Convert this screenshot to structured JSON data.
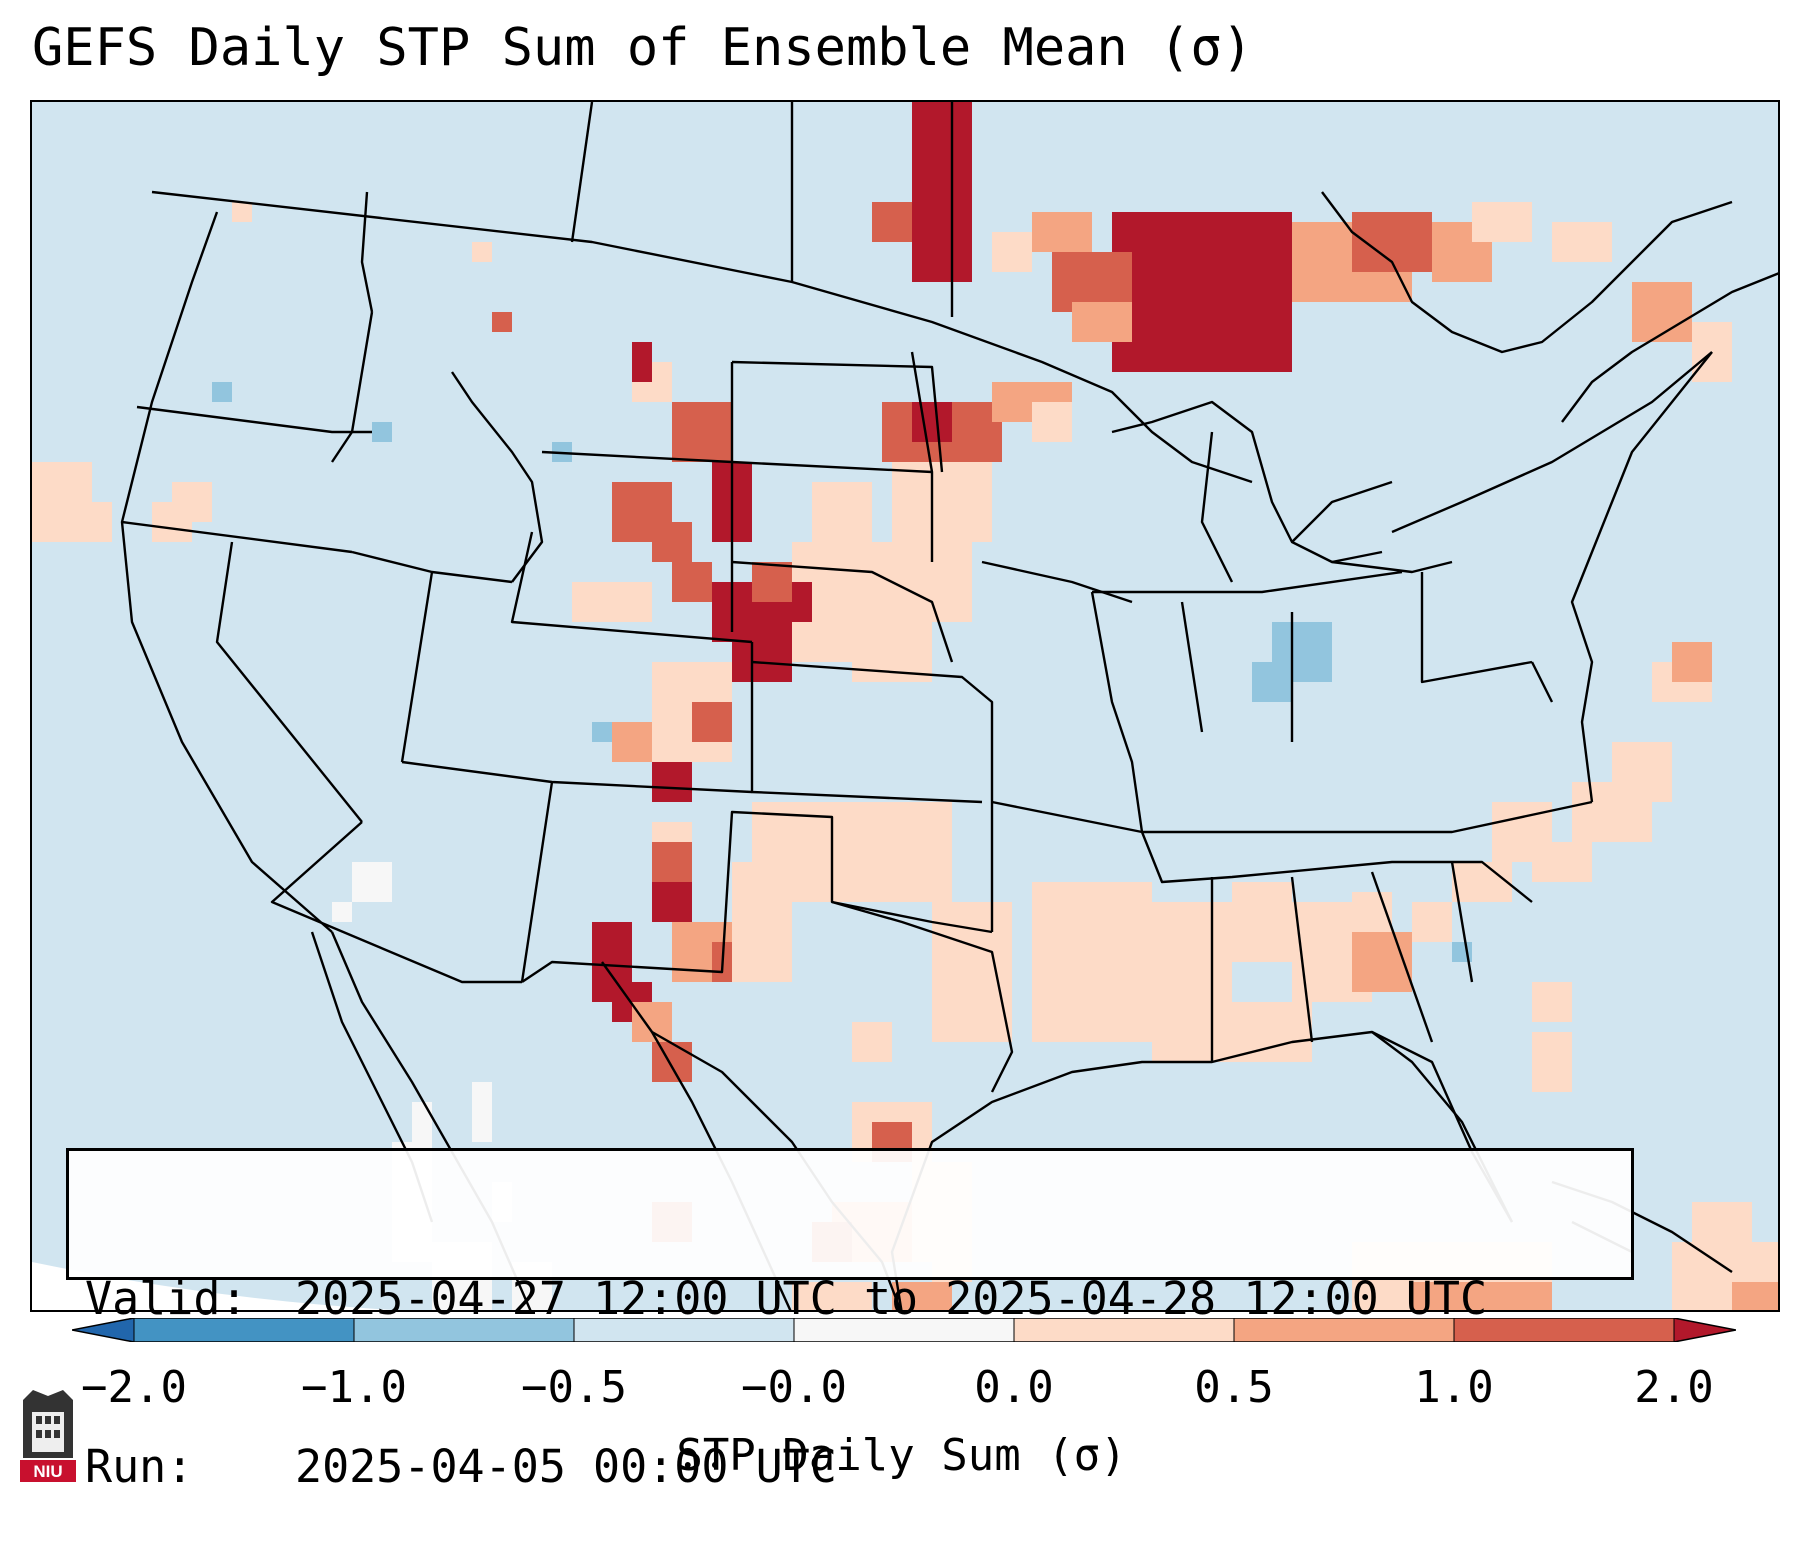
{
  "title": "GEFS Daily STP Sum of Ensemble Mean (σ)",
  "info": {
    "valid_key": "Valid:",
    "valid_value": "2025-04-27 12:00 UTC to 2025-04-28 12:00 UTC",
    "run_key": "Run:",
    "run_value": "2025-04-05 00:00 UTC"
  },
  "colorbar": {
    "label": "STP Daily Sum (σ)",
    "ticks": [
      "−2.0",
      "−1.0",
      "−0.5",
      "−0.0",
      "0.0",
      "0.5",
      "1.0",
      "2.0"
    ],
    "bins": [
      {
        "color": "#2166ac"
      },
      {
        "color": "#4393c3"
      },
      {
        "color": "#92c5de"
      },
      {
        "color": "#d1e5f0"
      },
      {
        "color": "#f7f7f7"
      },
      {
        "color": "#fddbc7"
      },
      {
        "color": "#f4a582"
      },
      {
        "color": "#d6604d"
      },
      {
        "color": "#b2182b"
      }
    ]
  },
  "map": {
    "background_color": "#d1e5f0",
    "boundary_color": "#000000"
  },
  "logo": {
    "text": "NIU"
  }
}
